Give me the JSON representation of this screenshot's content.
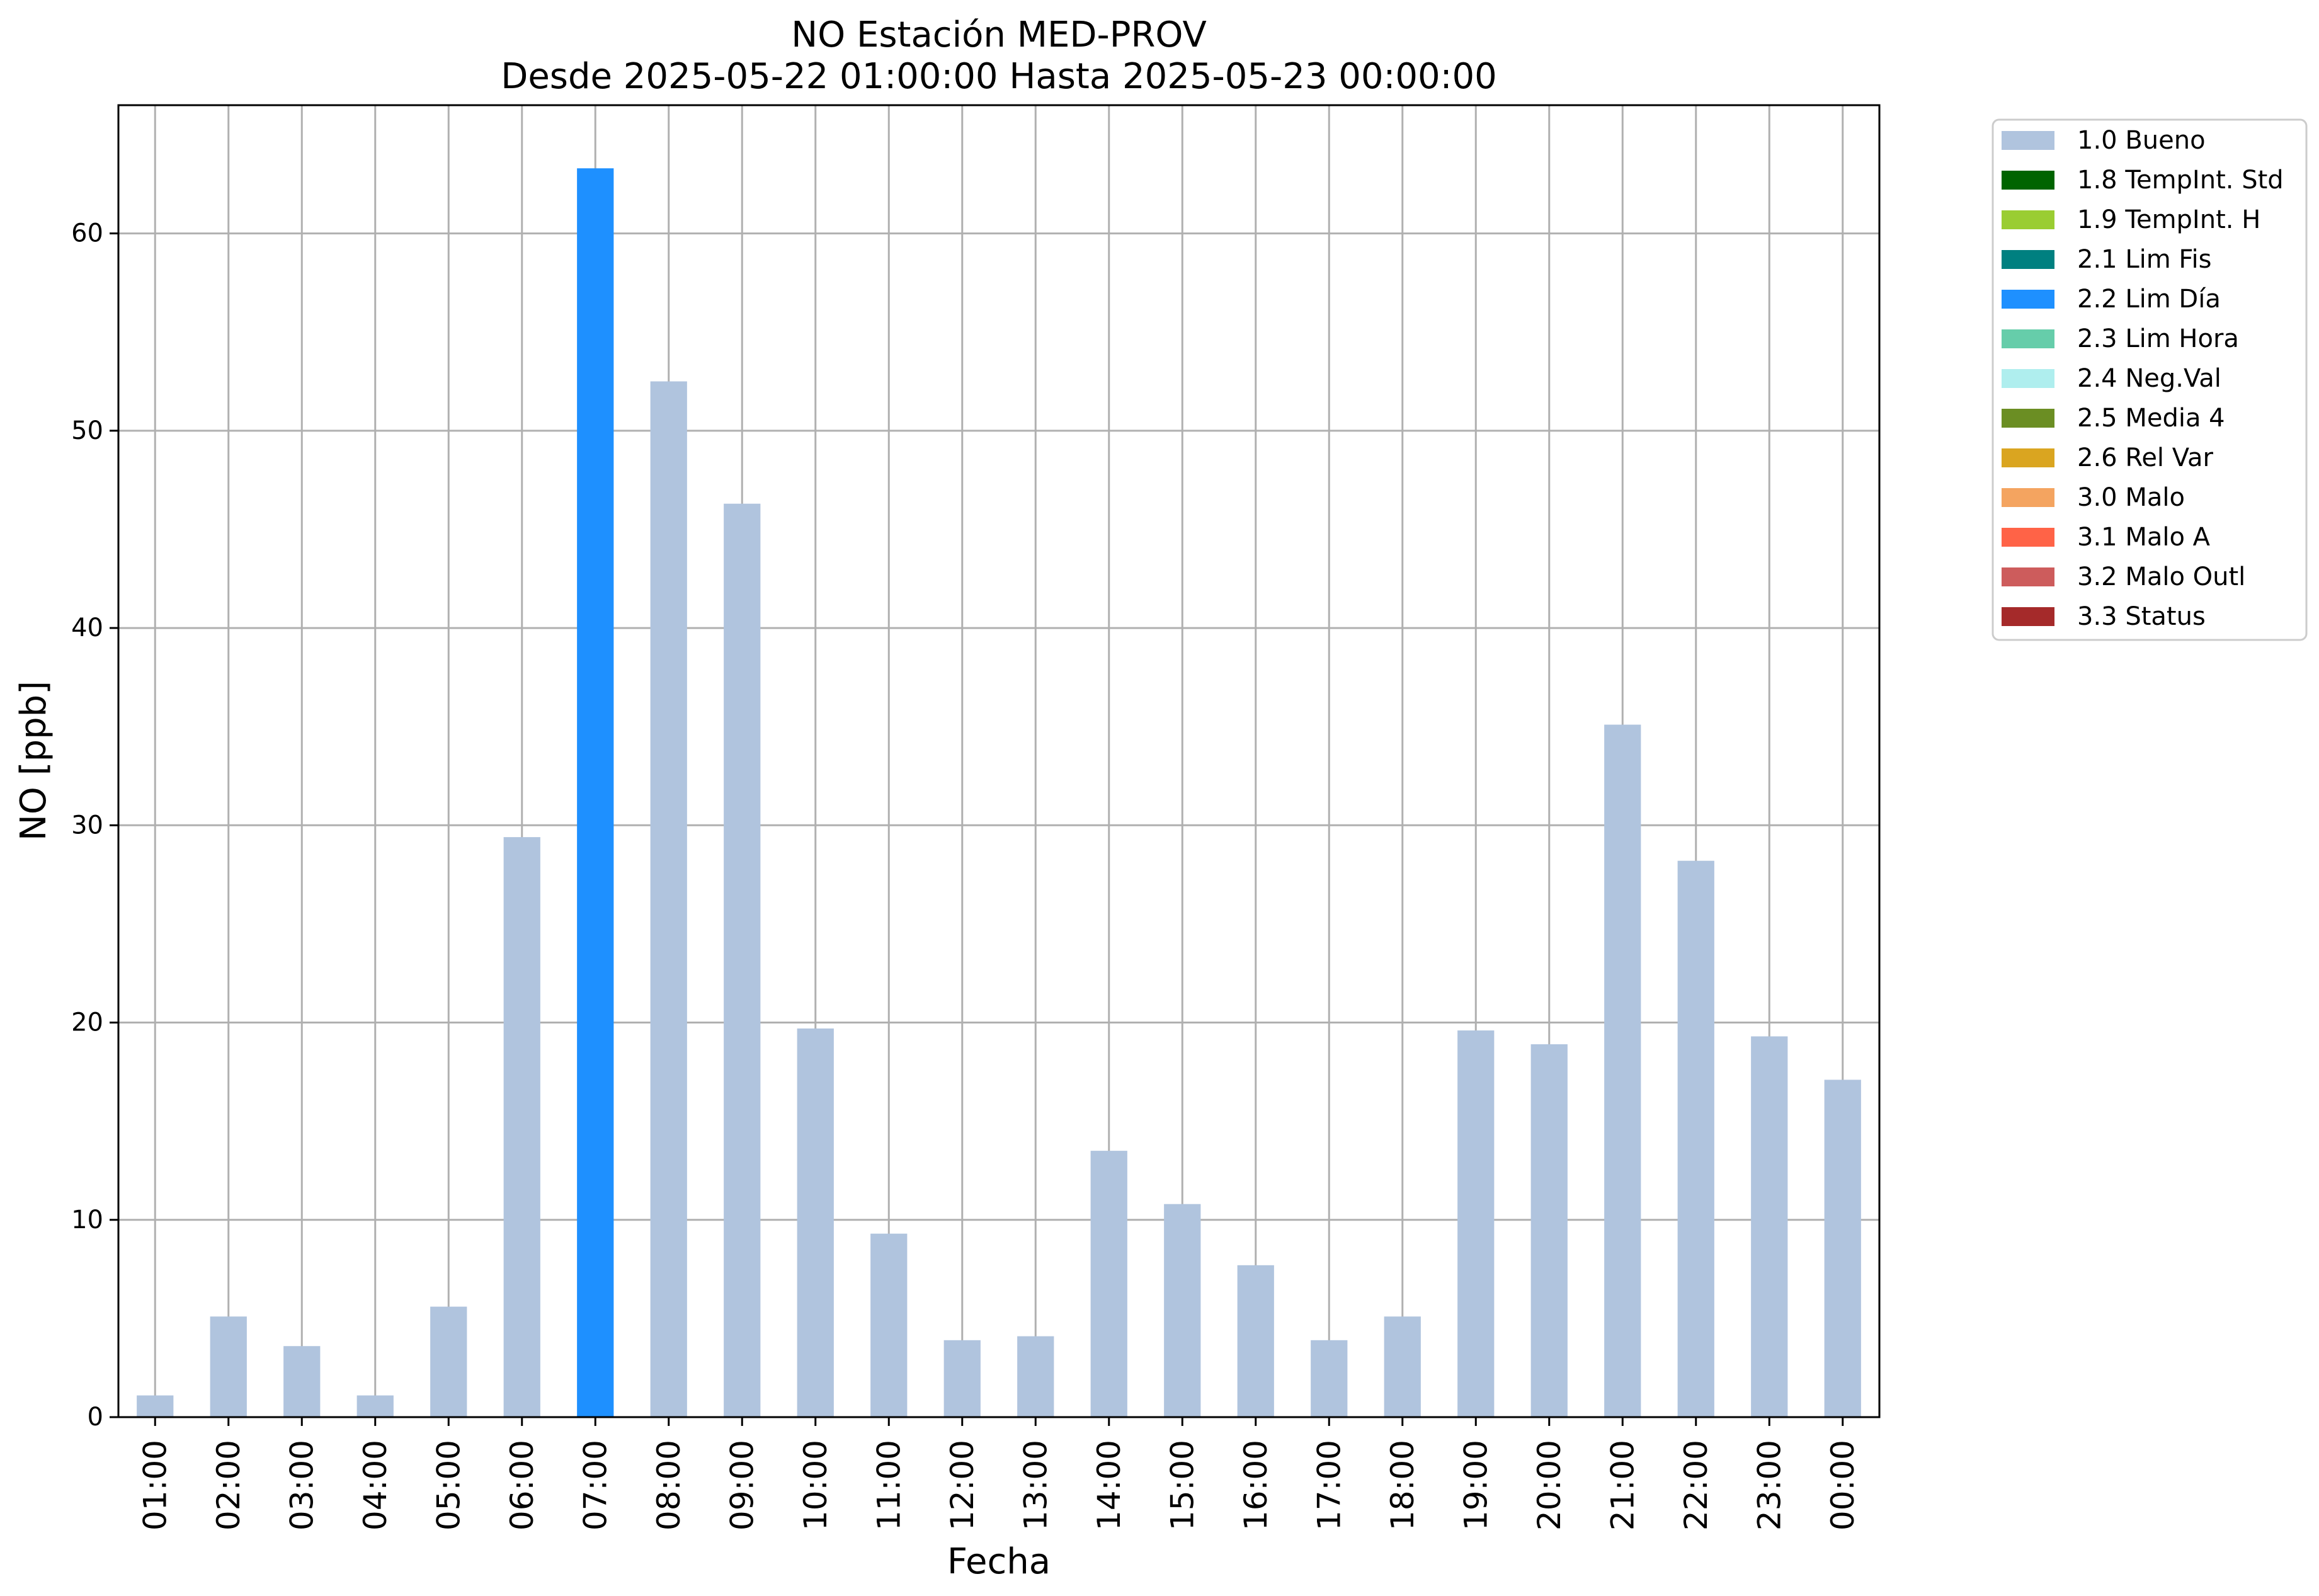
{
  "chart_data": {
    "type": "bar",
    "title": "NO Estación MED-PROV",
    "subtitle": "Desde 2025-05-22 01:00:00 Hasta 2025-05-23 00:00:00",
    "xlabel": "Fecha",
    "ylabel": "NO [ppb]",
    "ylim": [
      0,
      66.5
    ],
    "yticks": [
      0,
      10,
      20,
      30,
      40,
      50,
      60
    ],
    "grid": true,
    "legend_position": "outside-top-right",
    "categories": [
      "01:00",
      "02:00",
      "03:00",
      "04:00",
      "05:00",
      "06:00",
      "07:00",
      "08:00",
      "09:00",
      "10:00",
      "11:00",
      "12:00",
      "13:00",
      "14:00",
      "15:00",
      "16:00",
      "17:00",
      "18:00",
      "19:00",
      "20:00",
      "21:00",
      "22:00",
      "23:00",
      "00:00"
    ],
    "values": [
      1.1,
      5.1,
      3.6,
      1.1,
      5.6,
      29.4,
      63.3,
      52.5,
      46.3,
      19.7,
      9.3,
      3.9,
      4.1,
      13.5,
      10.8,
      7.7,
      3.9,
      5.1,
      19.6,
      18.9,
      35.1,
      28.2,
      19.3,
      17.1
    ],
    "flags": [
      "1.0 Bueno",
      "1.0 Bueno",
      "1.0 Bueno",
      "1.0 Bueno",
      "1.0 Bueno",
      "1.0 Bueno",
      "2.2 Lim Día",
      "1.0 Bueno",
      "1.0 Bueno",
      "1.0 Bueno",
      "1.0 Bueno",
      "1.0 Bueno",
      "1.0 Bueno",
      "1.0 Bueno",
      "1.0 Bueno",
      "1.0 Bueno",
      "1.0 Bueno",
      "1.0 Bueno",
      "1.0 Bueno",
      "1.0 Bueno",
      "1.0 Bueno",
      "1.0 Bueno",
      "1.0 Bueno",
      "1.0 Bueno"
    ],
    "legend": [
      {
        "label": "1.0 Bueno",
        "color": "#b0c4de"
      },
      {
        "label": "1.8 TempInt. Std",
        "color": "#006400"
      },
      {
        "label": "1.9 TempInt. H",
        "color": "#9acd32"
      },
      {
        "label": "2.1 Lim Fis",
        "color": "#008080"
      },
      {
        "label": "2.2 Lim Día",
        "color": "#1e90ff"
      },
      {
        "label": "2.3 Lim Hora",
        "color": "#66cdaa"
      },
      {
        "label": "2.4 Neg.Val",
        "color": "#afeeee"
      },
      {
        "label": "2.5 Media 4",
        "color": "#6b8e23"
      },
      {
        "label": "2.6 Rel Var",
        "color": "#daa520"
      },
      {
        "label": "3.0 Malo",
        "color": "#f4a460"
      },
      {
        "label": "3.1 Malo A",
        "color": "#ff6347"
      },
      {
        "label": "3.2 Malo Outl",
        "color": "#cd5c5c"
      },
      {
        "label": "3.3 Status",
        "color": "#a52a2a"
      }
    ]
  }
}
